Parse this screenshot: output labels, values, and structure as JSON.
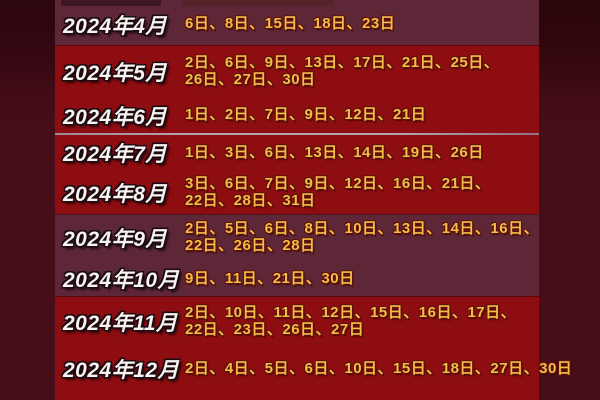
{
  "document": {
    "kind": "static-calendar-infographic",
    "year": "2024"
  },
  "colors": {
    "page_bg": "#470d18",
    "page_bg_dark": "#2f060f",
    "band_plum": "#5e2737",
    "band_red": "#8e0d10",
    "separator": "#b7a3b1",
    "month_text": "#f6f3f0",
    "month_outline": "#1c0b11",
    "date_text": "#f2bd49",
    "date_outline": "#5f1108"
  },
  "table": {
    "rows": [
      {
        "month": "2024年4月",
        "lines": 1,
        "date_lines": [
          "6日、8日、15日、18日、23日"
        ]
      },
      {
        "month": "2024年5月",
        "lines": 2,
        "date_lines": [
          "2日、6日、9日、13日、17日、21日、25日、",
          "26日、27日、30日"
        ]
      },
      {
        "month": "2024年6月",
        "lines": 1,
        "date_lines": [
          "1日、2日、7日、9日、12日、21日"
        ]
      },
      {
        "month": "2024年7月",
        "lines": 1,
        "date_lines": [
          "1日、3日、6日、13日、14日、19日、26日"
        ]
      },
      {
        "month": "2024年8月",
        "lines": 2,
        "date_lines": [
          "3日、6日、7日、9日、12日、16日、21日、",
          "22日、28日、31日"
        ]
      },
      {
        "month": "2024年9月",
        "lines": 2,
        "date_lines": [
          "2日、5日、6日、8日、10日、13日、14日、16日、",
          "22日、26日、28日"
        ]
      },
      {
        "month": "2024年10月",
        "lines": 1,
        "date_lines": [
          "9日、11日、21日、30日"
        ]
      },
      {
        "month": "2024年11月",
        "lines": 2,
        "date_lines": [
          "2日、10日、11日、12日、15日、16日、17日、",
          "22日、23日、26日、27日"
        ]
      },
      {
        "month": "2024年12月",
        "lines": 1,
        "date_lines": [
          "2日、4日、5日、6日、10日、15日、18日、27日、30日"
        ]
      }
    ],
    "bands": [
      {
        "bg": "plum",
        "rows": [
          0
        ],
        "remnant": true
      },
      {
        "bg": "red",
        "rows": [
          1,
          2
        ]
      },
      {
        "bg": "red",
        "rows": [
          3,
          4
        ],
        "separator_above": true
      },
      {
        "bg": "plum",
        "rows": [
          5,
          6
        ]
      },
      {
        "bg": "red",
        "rows": [
          7,
          8
        ]
      }
    ]
  }
}
